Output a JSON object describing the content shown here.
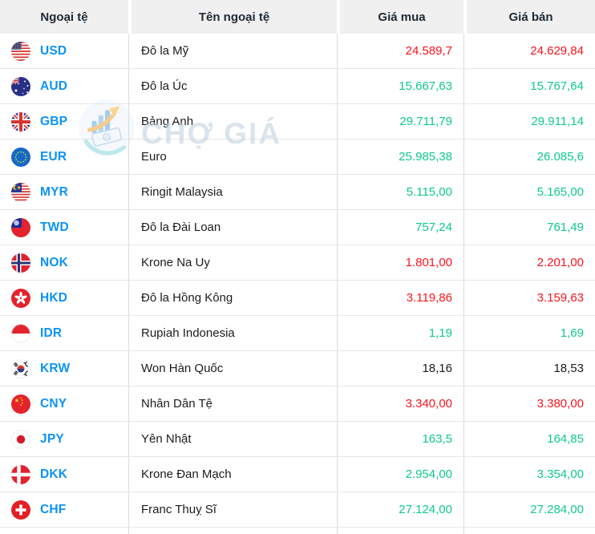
{
  "header": {
    "columns": [
      "Ngoại tệ",
      "Tên ngoại tệ",
      "Giá mua",
      "Giá bán"
    ]
  },
  "watermark": {
    "brand": "CHỢ GIÁ"
  },
  "colors": {
    "price_up": "#0ec98e",
    "price_down": "#f8141c",
    "price_flat": "#1b1b1b",
    "currency_code": "#0c93f5",
    "header_text": "#212b36",
    "header_bg": "#f0f0f0"
  },
  "table": {
    "rows": [
      {
        "code": "USD",
        "name": "Đô la Mỹ",
        "buy": "24.589,7",
        "sell": "24.629,84",
        "trend": "down"
      },
      {
        "code": "AUD",
        "name": "Đô la Úc",
        "buy": "15.667,63",
        "sell": "15.767,64",
        "trend": "up"
      },
      {
        "code": "GBP",
        "name": "Bảng Anh",
        "buy": "29.711,79",
        "sell": "29.911,14",
        "trend": "up"
      },
      {
        "code": "EUR",
        "name": "Euro",
        "buy": "25.985,38",
        "sell": "26.085,6",
        "trend": "up"
      },
      {
        "code": "MYR",
        "name": "Ringit Malaysia",
        "buy": "5.115,00",
        "sell": "5.165,00",
        "trend": "up"
      },
      {
        "code": "TWD",
        "name": "Đô la Đài Loan",
        "buy": "757,24",
        "sell": "761,49",
        "trend": "up"
      },
      {
        "code": "NOK",
        "name": "Krone Na Uy",
        "buy": "1.801,00",
        "sell": "2.201,00",
        "trend": "down"
      },
      {
        "code": "HKD",
        "name": "Đô la Hồng Kông",
        "buy": "3.119,86",
        "sell": "3.159,63",
        "trend": "down"
      },
      {
        "code": "IDR",
        "name": "Rupiah Indonesia",
        "buy": "1,19",
        "sell": "1,69",
        "trend": "up"
      },
      {
        "code": "KRW",
        "name": "Won Hàn Quốc",
        "buy": "18,16",
        "sell": "18,53",
        "trend": "flat"
      },
      {
        "code": "CNY",
        "name": "Nhân Dân Tệ",
        "buy": "3.340,00",
        "sell": "3.380,00",
        "trend": "down"
      },
      {
        "code": "JPY",
        "name": "Yên Nhật",
        "buy": "163,5",
        "sell": "164,85",
        "trend": "up"
      },
      {
        "code": "DKK",
        "name": "Krone Đan Mạch",
        "buy": "2.954,00",
        "sell": "3.354,00",
        "trend": "up"
      },
      {
        "code": "CHF",
        "name": "Franc Thuỵ Sĩ",
        "buy": "27.124,00",
        "sell": "27.284,00",
        "trend": "up"
      }
    ]
  }
}
